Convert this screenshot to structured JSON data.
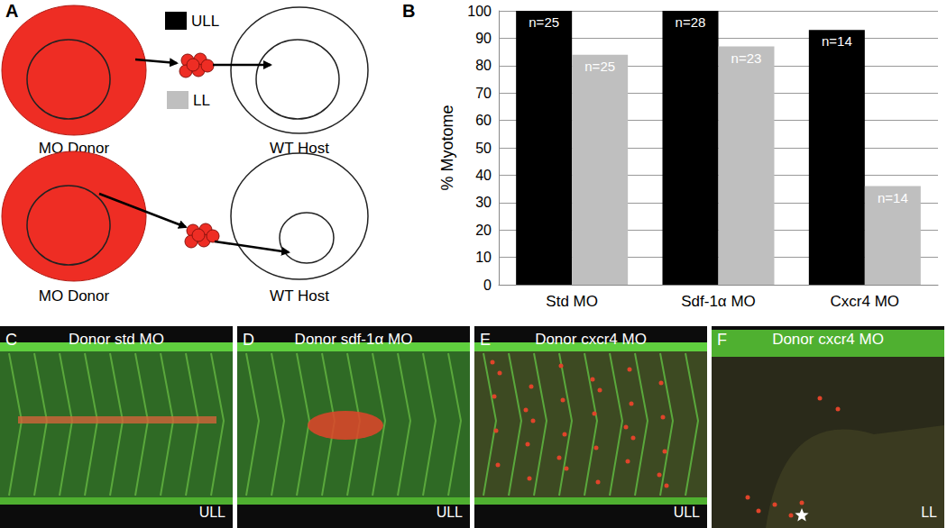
{
  "panel_labels": [
    "A",
    "B",
    "C",
    "D",
    "E",
    "F"
  ],
  "diagram": {
    "rows": [
      {
        "donor": "MO Donor",
        "host": "WT Host",
        "target": "ULL"
      },
      {
        "donor": "MO Donor",
        "host": "WT Host",
        "target": "LL"
      }
    ]
  },
  "chart_data": {
    "type": "bar",
    "categories": [
      "Std MO",
      "Sdf-1α MO",
      "Cxcr4 MO"
    ],
    "series": [
      {
        "name": "ULL",
        "color": "#000000",
        "values": [
          100,
          100,
          93
        ],
        "annotations": [
          "n=25",
          "n=28",
          "n=14"
        ]
      },
      {
        "name": "LL",
        "color": "#bfbfbf",
        "values": [
          84,
          87,
          36
        ],
        "annotations": [
          "n=25",
          "n=23",
          "n=14"
        ]
      }
    ],
    "y_label": "% Myotome",
    "ylim": [
      0,
      100
    ],
    "yticks": [
      0,
      10,
      20,
      30,
      40,
      50,
      60,
      70,
      80,
      90,
      100
    ],
    "grid": true,
    "legend": "top-left"
  },
  "images": [
    {
      "title": "Donor std MO",
      "region": "ULL"
    },
    {
      "title": "Donor sdf-1α MO",
      "region": "ULL"
    },
    {
      "title": "Donor cxcr4 MO",
      "region": "ULL"
    },
    {
      "title": "Donor cxcr4 MO",
      "region": "LL",
      "marker": "star"
    }
  ]
}
